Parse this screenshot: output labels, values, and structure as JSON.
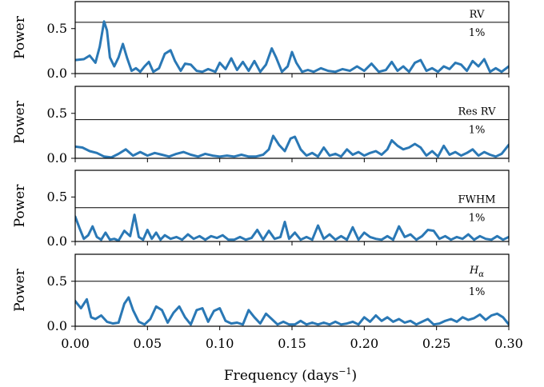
{
  "figure": {
    "xlabel": "Frequency (days",
    "xlabel_sup": "−1",
    "xlabel_close": ")"
  },
  "chart_data": [
    {
      "type": "line",
      "name": "RV",
      "ylabel": "Power",
      "xlim": [
        0.0,
        0.3
      ],
      "ylim": [
        0.0,
        0.8
      ],
      "yticks": [
        0.0,
        0.5
      ],
      "ytick_labels": [
        "0.0",
        "0.5"
      ],
      "xticks": [
        0.0,
        0.05,
        0.1,
        0.15,
        0.2,
        0.25,
        0.3
      ],
      "xtick_labels": [],
      "fap_level": 0.57,
      "annotation_top": "RV",
      "annotation_bottom": "1%",
      "color": "#2a78b5",
      "x": [
        0.0,
        0.006,
        0.01,
        0.014,
        0.017,
        0.02,
        0.022,
        0.024,
        0.027,
        0.03,
        0.033,
        0.036,
        0.039,
        0.042,
        0.045,
        0.048,
        0.051,
        0.054,
        0.058,
        0.062,
        0.066,
        0.069,
        0.073,
        0.076,
        0.08,
        0.084,
        0.088,
        0.092,
        0.097,
        0.1,
        0.104,
        0.108,
        0.112,
        0.116,
        0.12,
        0.124,
        0.128,
        0.132,
        0.136,
        0.139,
        0.143,
        0.147,
        0.15,
        0.153,
        0.157,
        0.161,
        0.165,
        0.17,
        0.175,
        0.18,
        0.185,
        0.19,
        0.195,
        0.2,
        0.205,
        0.21,
        0.215,
        0.219,
        0.223,
        0.227,
        0.231,
        0.235,
        0.239,
        0.243,
        0.247,
        0.251,
        0.255,
        0.259,
        0.263,
        0.267,
        0.271,
        0.275,
        0.279,
        0.283,
        0.287,
        0.291,
        0.295,
        0.3
      ],
      "y": [
        0.15,
        0.16,
        0.2,
        0.12,
        0.3,
        0.58,
        0.48,
        0.18,
        0.08,
        0.18,
        0.33,
        0.17,
        0.03,
        0.06,
        0.02,
        0.08,
        0.13,
        0.02,
        0.06,
        0.22,
        0.26,
        0.14,
        0.03,
        0.11,
        0.1,
        0.03,
        0.02,
        0.05,
        0.02,
        0.12,
        0.05,
        0.17,
        0.04,
        0.13,
        0.03,
        0.14,
        0.02,
        0.1,
        0.28,
        0.18,
        0.02,
        0.08,
        0.24,
        0.12,
        0.02,
        0.04,
        0.02,
        0.06,
        0.03,
        0.02,
        0.05,
        0.03,
        0.08,
        0.03,
        0.11,
        0.02,
        0.04,
        0.13,
        0.03,
        0.08,
        0.02,
        0.12,
        0.15,
        0.03,
        0.06,
        0.02,
        0.08,
        0.05,
        0.12,
        0.1,
        0.03,
        0.14,
        0.08,
        0.16,
        0.02,
        0.06,
        0.02,
        0.08
      ]
    },
    {
      "type": "line",
      "name": "Res RV",
      "ylabel": "Power",
      "xlim": [
        0.0,
        0.3
      ],
      "ylim": [
        0.0,
        0.8
      ],
      "yticks": [
        0.0,
        0.5
      ],
      "ytick_labels": [
        "0.0",
        "0.5"
      ],
      "xticks": [
        0.0,
        0.05,
        0.1,
        0.15,
        0.2,
        0.25,
        0.3
      ],
      "xtick_labels": [],
      "fap_level": 0.43,
      "annotation_top": "Res RV",
      "annotation_bottom": "1%",
      "color": "#2a78b5",
      "x": [
        0.0,
        0.005,
        0.01,
        0.015,
        0.02,
        0.025,
        0.03,
        0.035,
        0.04,
        0.045,
        0.05,
        0.055,
        0.06,
        0.065,
        0.07,
        0.075,
        0.08,
        0.085,
        0.09,
        0.095,
        0.1,
        0.105,
        0.11,
        0.115,
        0.12,
        0.125,
        0.13,
        0.134,
        0.137,
        0.141,
        0.145,
        0.149,
        0.152,
        0.156,
        0.16,
        0.164,
        0.168,
        0.172,
        0.176,
        0.18,
        0.184,
        0.188,
        0.192,
        0.196,
        0.2,
        0.204,
        0.208,
        0.212,
        0.216,
        0.219,
        0.223,
        0.227,
        0.231,
        0.235,
        0.239,
        0.243,
        0.247,
        0.251,
        0.255,
        0.259,
        0.263,
        0.267,
        0.271,
        0.275,
        0.279,
        0.283,
        0.287,
        0.291,
        0.295,
        0.3
      ],
      "y": [
        0.13,
        0.12,
        0.08,
        0.06,
        0.02,
        0.01,
        0.05,
        0.1,
        0.03,
        0.07,
        0.03,
        0.06,
        0.04,
        0.02,
        0.05,
        0.07,
        0.04,
        0.02,
        0.05,
        0.03,
        0.02,
        0.03,
        0.02,
        0.04,
        0.02,
        0.02,
        0.04,
        0.1,
        0.25,
        0.15,
        0.08,
        0.22,
        0.24,
        0.1,
        0.03,
        0.06,
        0.02,
        0.12,
        0.03,
        0.05,
        0.02,
        0.1,
        0.04,
        0.07,
        0.03,
        0.06,
        0.08,
        0.04,
        0.1,
        0.2,
        0.14,
        0.1,
        0.12,
        0.16,
        0.12,
        0.03,
        0.08,
        0.02,
        0.14,
        0.04,
        0.07,
        0.03,
        0.06,
        0.1,
        0.03,
        0.07,
        0.04,
        0.02,
        0.05,
        0.15
      ]
    },
    {
      "type": "line",
      "name": "FWHM",
      "ylabel": "Power",
      "xlim": [
        0.0,
        0.3
      ],
      "ylim": [
        0.0,
        0.8
      ],
      "yticks": [
        0.0,
        0.5
      ],
      "ytick_labels": [
        "0.0",
        "0.5"
      ],
      "xticks": [
        0.0,
        0.05,
        0.1,
        0.15,
        0.2,
        0.25,
        0.3
      ],
      "xtick_labels": [],
      "fap_level": 0.38,
      "annotation_top": "FWHM",
      "annotation_bottom": "1%",
      "color": "#2a78b5",
      "x": [
        0.0,
        0.003,
        0.006,
        0.009,
        0.012,
        0.015,
        0.018,
        0.021,
        0.024,
        0.027,
        0.03,
        0.034,
        0.038,
        0.041,
        0.044,
        0.047,
        0.05,
        0.053,
        0.056,
        0.059,
        0.062,
        0.066,
        0.07,
        0.074,
        0.078,
        0.082,
        0.086,
        0.09,
        0.094,
        0.098,
        0.102,
        0.106,
        0.11,
        0.114,
        0.118,
        0.122,
        0.126,
        0.13,
        0.134,
        0.138,
        0.142,
        0.145,
        0.148,
        0.152,
        0.156,
        0.16,
        0.164,
        0.168,
        0.172,
        0.176,
        0.18,
        0.184,
        0.188,
        0.192,
        0.196,
        0.2,
        0.204,
        0.208,
        0.212,
        0.216,
        0.22,
        0.224,
        0.228,
        0.232,
        0.236,
        0.24,
        0.244,
        0.248,
        0.252,
        0.256,
        0.26,
        0.264,
        0.268,
        0.272,
        0.276,
        0.28,
        0.284,
        0.288,
        0.292,
        0.296,
        0.3
      ],
      "y": [
        0.28,
        0.15,
        0.03,
        0.07,
        0.17,
        0.05,
        0.02,
        0.1,
        0.02,
        0.03,
        0.01,
        0.12,
        0.06,
        0.3,
        0.05,
        0.02,
        0.13,
        0.03,
        0.1,
        0.02,
        0.07,
        0.03,
        0.05,
        0.02,
        0.08,
        0.03,
        0.06,
        0.02,
        0.06,
        0.04,
        0.07,
        0.02,
        0.02,
        0.05,
        0.02,
        0.04,
        0.13,
        0.02,
        0.12,
        0.03,
        0.05,
        0.22,
        0.03,
        0.1,
        0.02,
        0.05,
        0.02,
        0.18,
        0.03,
        0.08,
        0.02,
        0.06,
        0.02,
        0.16,
        0.02,
        0.1,
        0.05,
        0.03,
        0.02,
        0.06,
        0.02,
        0.17,
        0.05,
        0.08,
        0.02,
        0.06,
        0.13,
        0.12,
        0.03,
        0.06,
        0.02,
        0.05,
        0.03,
        0.08,
        0.02,
        0.06,
        0.03,
        0.02,
        0.06,
        0.02,
        0.05
      ]
    },
    {
      "type": "line",
      "name": "H_alpha",
      "ylabel": "Power",
      "xlim": [
        0.0,
        0.3
      ],
      "ylim": [
        0.0,
        0.8
      ],
      "yticks": [
        0.0,
        0.5
      ],
      "ytick_labels": [
        "0.0",
        "0.5"
      ],
      "xticks": [
        0.0,
        0.05,
        0.1,
        0.15,
        0.2,
        0.25,
        0.3
      ],
      "xtick_labels": [
        "0.00",
        "0.05",
        "0.10",
        "0.15",
        "0.20",
        "0.25",
        "0.30"
      ],
      "fap_level": 0.5,
      "annotation_top": "H",
      "annotation_top_sub": "α",
      "annotation_bottom": "1%",
      "color": "#2a78b5",
      "x": [
        0.0,
        0.004,
        0.008,
        0.011,
        0.014,
        0.018,
        0.022,
        0.026,
        0.03,
        0.034,
        0.037,
        0.04,
        0.044,
        0.048,
        0.052,
        0.056,
        0.06,
        0.064,
        0.068,
        0.072,
        0.076,
        0.08,
        0.084,
        0.088,
        0.092,
        0.096,
        0.1,
        0.104,
        0.108,
        0.112,
        0.116,
        0.12,
        0.124,
        0.128,
        0.132,
        0.136,
        0.14,
        0.144,
        0.148,
        0.152,
        0.156,
        0.16,
        0.164,
        0.168,
        0.172,
        0.176,
        0.18,
        0.184,
        0.188,
        0.192,
        0.196,
        0.2,
        0.204,
        0.208,
        0.212,
        0.216,
        0.22,
        0.224,
        0.228,
        0.232,
        0.236,
        0.24,
        0.244,
        0.248,
        0.252,
        0.256,
        0.26,
        0.264,
        0.268,
        0.272,
        0.276,
        0.28,
        0.284,
        0.288,
        0.292,
        0.296,
        0.3
      ],
      "y": [
        0.28,
        0.2,
        0.3,
        0.1,
        0.08,
        0.12,
        0.05,
        0.03,
        0.04,
        0.25,
        0.32,
        0.18,
        0.05,
        0.02,
        0.08,
        0.22,
        0.18,
        0.04,
        0.15,
        0.22,
        0.1,
        0.02,
        0.18,
        0.2,
        0.05,
        0.17,
        0.2,
        0.06,
        0.03,
        0.04,
        0.02,
        0.18,
        0.1,
        0.03,
        0.14,
        0.08,
        0.02,
        0.05,
        0.02,
        0.02,
        0.06,
        0.02,
        0.04,
        0.02,
        0.04,
        0.02,
        0.05,
        0.02,
        0.03,
        0.05,
        0.02,
        0.1,
        0.05,
        0.12,
        0.06,
        0.1,
        0.05,
        0.08,
        0.04,
        0.06,
        0.02,
        0.05,
        0.08,
        0.02,
        0.03,
        0.06,
        0.08,
        0.05,
        0.1,
        0.07,
        0.09,
        0.13,
        0.07,
        0.12,
        0.14,
        0.1,
        0.02
      ]
    }
  ]
}
